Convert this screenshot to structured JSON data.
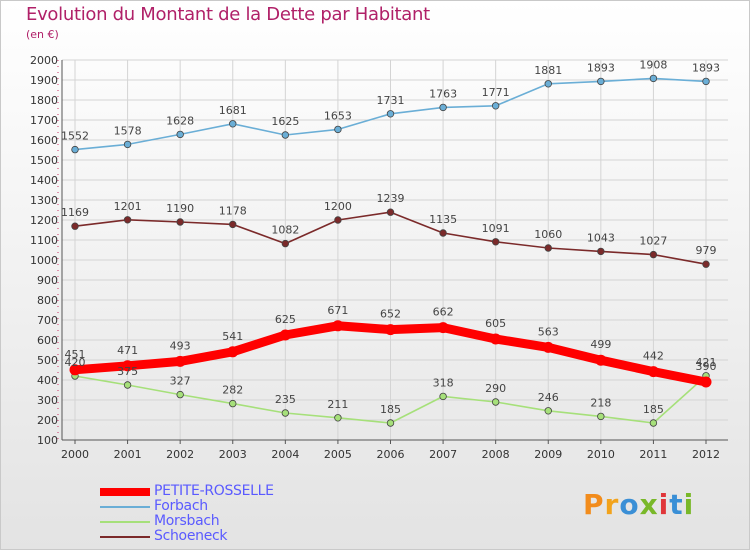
{
  "title": "Evolution du Montant de la Dette par Habitant",
  "subtitle": "(en €)",
  "chart_data": {
    "type": "line",
    "title": "Evolution du Montant de la Dette par Habitant",
    "ylabel": "(en €)",
    "xlabel": "",
    "categories": [
      "2000",
      "2001",
      "2002",
      "2003",
      "2004",
      "2005",
      "2006",
      "2007",
      "2008",
      "2009",
      "2010",
      "2011",
      "2012"
    ],
    "ylim": [
      100,
      2000
    ],
    "yticks": [
      100,
      200,
      300,
      400,
      500,
      600,
      700,
      800,
      900,
      1000,
      1100,
      1200,
      1300,
      1400,
      1500,
      1600,
      1700,
      1800,
      1900,
      2000
    ],
    "grid": true,
    "legend_position": "bottom-left",
    "series": [
      {
        "name": "PETITE-ROSSELLE",
        "color": "#ff0000",
        "values": [
          451,
          471,
          493,
          541,
          625,
          671,
          652,
          662,
          605,
          563,
          499,
          442,
          390
        ]
      },
      {
        "name": "Forbach",
        "color": "#6aaed6",
        "values": [
          1552,
          1578,
          1628,
          1681,
          1625,
          1653,
          1731,
          1763,
          1771,
          1881,
          1893,
          1908,
          1893
        ]
      },
      {
        "name": "Morsbach",
        "color": "#a6e07a",
        "values": [
          420,
          375,
          327,
          282,
          235,
          211,
          185,
          318,
          290,
          246,
          218,
          185,
          421
        ]
      },
      {
        "name": "Schoeneck",
        "color": "#7b2a2a",
        "values": [
          1169,
          1201,
          1190,
          1178,
          1082,
          1200,
          1239,
          1135,
          1091,
          1060,
          1043,
          1027,
          979
        ]
      }
    ]
  },
  "logo": {
    "text": "Proxiti",
    "letters": [
      "P",
      "r",
      "o",
      "x",
      "i",
      "t",
      "i"
    ],
    "colors": [
      "#f28c1c",
      "#f2a31c",
      "#3a8fd6",
      "#79b829",
      "#e0363a",
      "#3a8fd6",
      "#79b829"
    ]
  }
}
